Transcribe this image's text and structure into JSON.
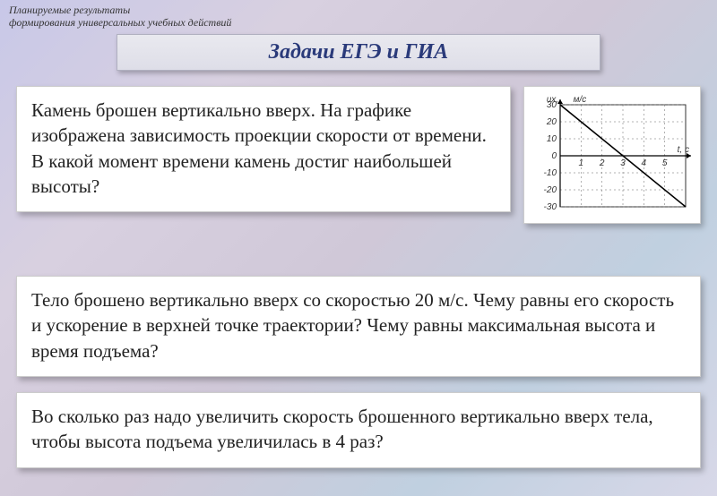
{
  "watermark": {
    "line1": "Планируемые результаты",
    "line2": "формирования универсальных учебных действий"
  },
  "title": "Задачи ЕГЭ и ГИА",
  "problem1": "Камень брошен вертикально вверх. На графике изображена зависимость проекции скорости от времени. В какой момент времени камень достиг наибольшей высоты?",
  "problem2": "Тело брошено вертикально вверх со скоростью 20 м/с. Чему равны его скорость и ускорение в верхней точке траектории? Чему равны максимальная высота и время подъема?",
  "problem3": "Во сколько раз надо увеличить скорость брошенного вертикально вверх тела, чтобы высота подъема увеличилась в 4 раз?",
  "graph": {
    "y_axis_label": "υx,",
    "y_axis_unit": "м/с",
    "x_axis_label": "t, с",
    "y_ticks": [
      30,
      20,
      10,
      0,
      -10,
      -20,
      -30
    ],
    "x_ticks": [
      1,
      2,
      3,
      4,
      5
    ],
    "line": {
      "x1": 0,
      "y1": 30,
      "x2": 6,
      "y2": -30
    },
    "frame_color": "#333333",
    "grid_color": "#666666",
    "axis_color": "#000000",
    "text_color": "#333333",
    "line_width": 1.6,
    "font_size": 10
  }
}
